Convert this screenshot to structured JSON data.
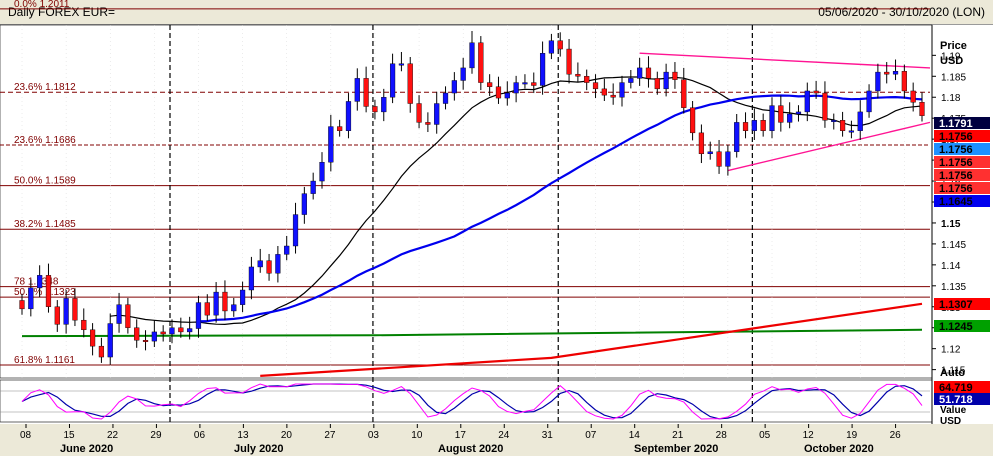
{
  "header": {
    "title": "Daily FOREX EUR=",
    "date_range": "05/06/2020 - 30/10/2020 (LON)"
  },
  "axis": {
    "price_label_line1": "Price",
    "price_label_line2": "USD",
    "auto_label": "Auto",
    "value_label": "Value",
    "usd_label": "USD",
    "y_ticks": [
      "1.19",
      "1.185",
      "1.18",
      "1.175",
      "1.17",
      "1.165",
      "1.16",
      "1.155",
      "1.15",
      "1.145",
      "1.14",
      "1.135",
      "1.13",
      "1.125",
      "1.12",
      "1.115"
    ],
    "osc_ticks": []
  },
  "tags": [
    {
      "label": "1.1791",
      "bg": "#000040",
      "fg": "#ffffff"
    },
    {
      "label": "1.1756",
      "bg": "#ff0000",
      "fg": "#000000"
    },
    {
      "label": "1.1756",
      "bg": "#1e90ff",
      "fg": "#000000"
    },
    {
      "label": "1.1756",
      "bg": "#ff3030",
      "fg": "#000000"
    },
    {
      "label": "1.1756",
      "bg": "#ff3030",
      "fg": "#000000"
    },
    {
      "label": "1.1756",
      "bg": "#ff3030",
      "fg": "#000000"
    },
    {
      "label": "1.1645",
      "bg": "#0000ee",
      "fg": "#000000"
    },
    {
      "label": "1.1307",
      "bg": "#ff0000",
      "fg": "#000000"
    },
    {
      "label": "1.1245",
      "bg": "#00a000",
      "fg": "#000000"
    },
    {
      "label": "64.719",
      "bg": "#ff0000",
      "fg": "#000000"
    },
    {
      "label": "51.718",
      "bg": "#0000aa",
      "fg": "#ffffff"
    }
  ],
  "fib_labels": [
    {
      "text": "0.0%  1.2011",
      "value": 1.2011
    },
    {
      "text": "23.6%  1.1812",
      "value": 1.1812
    },
    {
      "text": "23.6%  1.1686",
      "value": 1.1686
    },
    {
      "text": "50.0%  1.1589",
      "value": 1.1589
    },
    {
      "text": "38.2%  1.1485",
      "value": 1.1485
    },
    {
      "text": "78  1.1348",
      "value": 1.1348
    },
    {
      "text": "50.0%  1.1323",
      "value": 1.1323
    },
    {
      "text": "61.8%  1.1161",
      "value": 1.1161
    }
  ],
  "x_axis": {
    "day_ticks": [
      "08",
      "15",
      "22",
      "29",
      "06",
      "13",
      "20",
      "27",
      "03",
      "10",
      "17",
      "24",
      "31",
      "07",
      "14",
      "21",
      "28",
      "05",
      "12",
      "19",
      "26"
    ],
    "month_labels": [
      "June 2020",
      "July 2020",
      "August 2020",
      "September 2020",
      "October 2020"
    ]
  },
  "colors": {
    "up_candle": "#1010ff",
    "down_candle": "#ff1010",
    "ma_short": "#000000",
    "ma_mid": "#0000ee",
    "ma_long": "#ee0000",
    "ma_green": "#008000",
    "trend": "#ff1493",
    "fib": "#800000"
  },
  "chart_data": {
    "type": "candlestick",
    "instrument": "EUR=",
    "ylim": [
      1.113,
      1.197
    ],
    "dates": [
      "06-08",
      "06-09",
      "06-10",
      "06-11",
      "06-12",
      "06-15",
      "06-16",
      "06-17",
      "06-18",
      "06-19",
      "06-22",
      "06-23",
      "06-24",
      "06-25",
      "06-26",
      "06-29",
      "06-30",
      "07-01",
      "07-02",
      "07-03",
      "07-06",
      "07-07",
      "07-08",
      "07-09",
      "07-10",
      "07-13",
      "07-14",
      "07-15",
      "07-16",
      "07-17",
      "07-20",
      "07-21",
      "07-22",
      "07-23",
      "07-24",
      "07-27",
      "07-28",
      "07-29",
      "07-30",
      "07-31",
      "08-03",
      "08-04",
      "08-05",
      "08-06",
      "08-07",
      "08-10",
      "08-11",
      "08-12",
      "08-13",
      "08-14",
      "08-17",
      "08-18",
      "08-19",
      "08-20",
      "08-21",
      "08-24",
      "08-25",
      "08-26",
      "08-27",
      "08-28",
      "08-31",
      "09-01",
      "09-02",
      "09-03",
      "09-04",
      "09-07",
      "09-08",
      "09-09",
      "09-10",
      "09-11",
      "09-14",
      "09-15",
      "09-16",
      "09-17",
      "09-18",
      "09-21",
      "09-22",
      "09-23",
      "09-24",
      "09-25",
      "09-28",
      "09-29",
      "09-30",
      "10-01",
      "10-02",
      "10-05",
      "10-06",
      "10-07",
      "10-08",
      "10-09",
      "10-12",
      "10-13",
      "10-14",
      "10-15",
      "10-16",
      "10-19",
      "10-20",
      "10-21",
      "10-22",
      "10-23",
      "10-26",
      "10-27",
      "10-28"
    ],
    "close": [
      1.1295,
      1.1345,
      1.1375,
      1.13,
      1.1258,
      1.132,
      1.1268,
      1.1245,
      1.1206,
      1.118,
      1.126,
      1.1305,
      1.125,
      1.122,
      1.1218,
      1.124,
      1.1235,
      1.125,
      1.124,
      1.1248,
      1.131,
      1.128,
      1.1335,
      1.129,
      1.1305,
      1.134,
      1.1395,
      1.141,
      1.138,
      1.1425,
      1.1445,
      1.152,
      1.157,
      1.16,
      1.1645,
      1.173,
      1.172,
      1.179,
      1.1845,
      1.1778,
      1.1765,
      1.18,
      1.188,
      1.188,
      1.1785,
      1.174,
      1.1735,
      1.1785,
      1.181,
      1.184,
      1.187,
      1.193,
      1.1835,
      1.1825,
      1.1798,
      1.181,
      1.1835,
      1.1835,
      1.1828,
      1.1905,
      1.1935,
      1.1915,
      1.1855,
      1.185,
      1.1835,
      1.182,
      1.1805,
      1.18,
      1.1835,
      1.1845,
      1.187,
      1.1845,
      1.182,
      1.186,
      1.1842,
      1.1775,
      1.1715,
      1.1665,
      1.167,
      1.1635,
      1.167,
      1.174,
      1.172,
      1.1745,
      1.172,
      1.178,
      1.174,
      1.176,
      1.1765,
      1.1815,
      1.181,
      1.1745,
      1.1745,
      1.172,
      1.172,
      1.1765,
      1.1815,
      1.186,
      1.1855,
      1.1862,
      1.1815,
      1.1788,
      1.1756
    ],
    "osc_fast_last": 64.719,
    "osc_slow_last": 51.718,
    "fib_levels": [
      1.2011,
      1.1812,
      1.1686,
      1.1589,
      1.1485,
      1.1348,
      1.1323,
      1.1161
    ]
  }
}
